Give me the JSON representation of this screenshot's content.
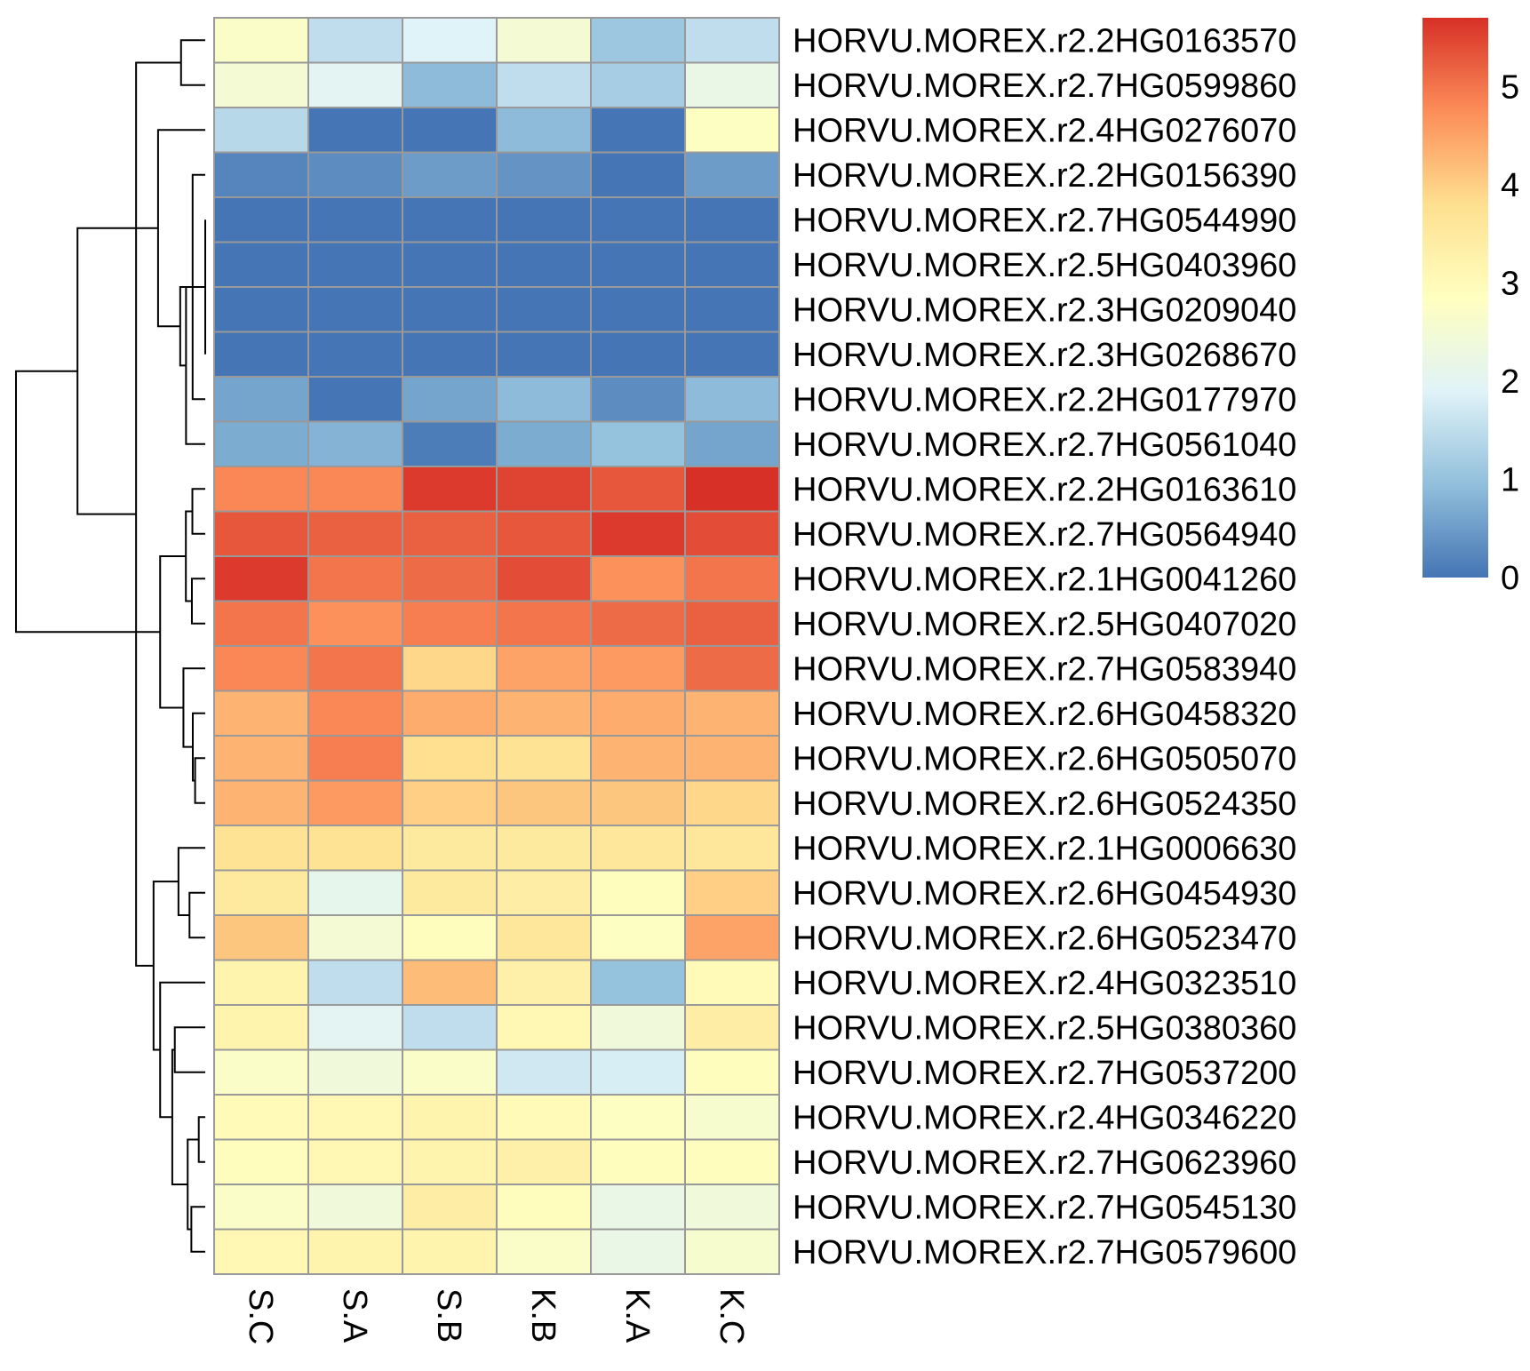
{
  "chart_data": {
    "type": "heatmap",
    "title": "",
    "columns": [
      "S.C",
      "S.A",
      "S.B",
      "K.B",
      "K.A",
      "K.C"
    ],
    "rows": [
      "HORVU.MOREX.r2.2HG0163570",
      "HORVU.MOREX.r2.7HG0599860",
      "HORVU.MOREX.r2.4HG0276070",
      "HORVU.MOREX.r2.2HG0156390",
      "HORVU.MOREX.r2.7HG0544990",
      "HORVU.MOREX.r2.5HG0403960",
      "HORVU.MOREX.r2.3HG0209040",
      "HORVU.MOREX.r2.3HG0268670",
      "HORVU.MOREX.r2.2HG0177970",
      "HORVU.MOREX.r2.7HG0561040",
      "HORVU.MOREX.r2.2HG0163610",
      "HORVU.MOREX.r2.7HG0564940",
      "HORVU.MOREX.r2.1HG0041260",
      "HORVU.MOREX.r2.5HG0407020",
      "HORVU.MOREX.r2.7HG0583940",
      "HORVU.MOREX.r2.6HG0458320",
      "HORVU.MOREX.r2.6HG0505070",
      "HORVU.MOREX.r2.6HG0524350",
      "HORVU.MOREX.r2.1HG0006630",
      "HORVU.MOREX.r2.6HG0454930",
      "HORVU.MOREX.r2.6HG0523470",
      "HORVU.MOREX.r2.4HG0323510",
      "HORVU.MOREX.r2.5HG0380360",
      "HORVU.MOREX.r2.7HG0537200",
      "HORVU.MOREX.r2.4HG0346220",
      "HORVU.MOREX.r2.7HG0623960",
      "HORVU.MOREX.r2.7HG0545130",
      "HORVU.MOREX.r2.7HG0579600"
    ],
    "values": [
      [
        2.7,
        1.5,
        1.9,
        2.5,
        1.1,
        1.5
      ],
      [
        2.5,
        2.0,
        0.9,
        1.5,
        1.2,
        2.2
      ],
      [
        1.4,
        0.0,
        0.0,
        0.9,
        0.0,
        2.8
      ],
      [
        0.2,
        0.3,
        0.5,
        0.4,
        0.0,
        0.5
      ],
      [
        0.0,
        0.0,
        0.0,
        0.0,
        0.0,
        0.0
      ],
      [
        0.0,
        0.0,
        0.0,
        0.0,
        0.0,
        0.0
      ],
      [
        0.0,
        0.0,
        0.0,
        0.0,
        0.0,
        0.0
      ],
      [
        0.0,
        0.0,
        0.0,
        0.0,
        0.0,
        0.0
      ],
      [
        0.6,
        0.0,
        0.6,
        0.9,
        0.3,
        0.9
      ],
      [
        0.7,
        0.8,
        0.1,
        0.7,
        1.0,
        0.6
      ],
      [
        4.8,
        4.8,
        5.6,
        5.5,
        5.3,
        5.7
      ],
      [
        5.3,
        5.2,
        5.2,
        5.3,
        5.6,
        5.4
      ],
      [
        5.6,
        5.0,
        5.1,
        5.4,
        4.7,
        5.0
      ],
      [
        5.0,
        4.7,
        4.9,
        5.0,
        5.1,
        5.2
      ],
      [
        4.8,
        5.0,
        3.9,
        4.5,
        4.6,
        5.1
      ],
      [
        4.3,
        4.8,
        4.4,
        4.3,
        4.4,
        4.3
      ],
      [
        4.3,
        4.9,
        3.8,
        3.7,
        4.3,
        4.3
      ],
      [
        4.3,
        4.6,
        4.0,
        4.1,
        4.1,
        3.9
      ],
      [
        3.7,
        3.7,
        3.5,
        3.5,
        3.6,
        3.6
      ],
      [
        3.5,
        2.1,
        3.5,
        3.4,
        2.9,
        4.0
      ],
      [
        4.1,
        2.5,
        2.9,
        3.6,
        2.8,
        4.5
      ],
      [
        3.2,
        1.5,
        4.2,
        3.3,
        1.0,
        3.0
      ],
      [
        3.2,
        2.0,
        1.5,
        3.1,
        2.4,
        3.4
      ],
      [
        2.7,
        2.4,
        2.7,
        1.7,
        1.8,
        2.9
      ],
      [
        3.0,
        3.1,
        3.2,
        3.0,
        2.8,
        2.6
      ],
      [
        2.9,
        3.1,
        3.2,
        3.3,
        2.9,
        2.9
      ],
      [
        2.7,
        2.4,
        3.4,
        2.9,
        2.2,
        2.4
      ],
      [
        3.1,
        3.2,
        3.2,
        2.7,
        2.2,
        2.6
      ]
    ],
    "legend": {
      "placement": "top-right",
      "ticks": [
        0,
        1,
        2,
        3,
        4,
        5
      ],
      "range": [
        0,
        5.7
      ],
      "colors": [
        "#4575b4",
        "#91bfdb",
        "#e0f3f8",
        "#ffffbf",
        "#fee090",
        "#fc8d59",
        "#d73027"
      ]
    },
    "cell_border_color": "#999999",
    "row_dendrogram": true
  }
}
